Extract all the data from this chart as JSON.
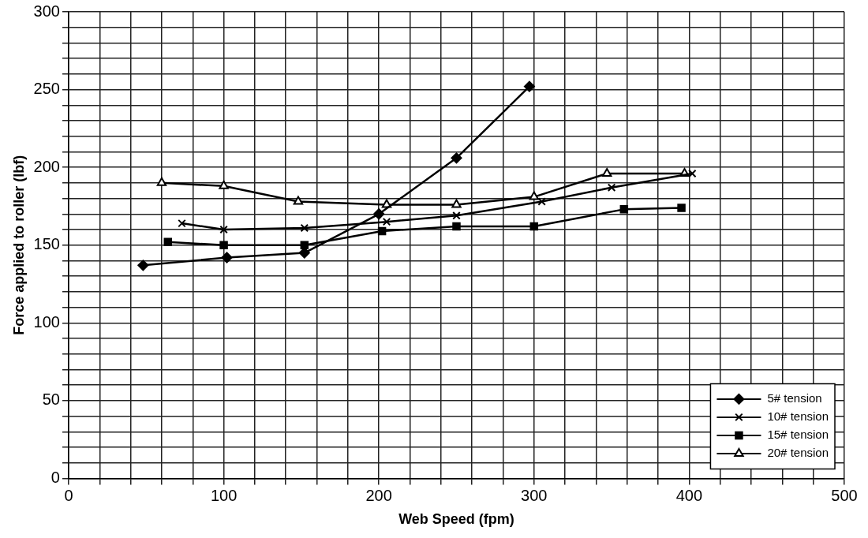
{
  "chart_data": {
    "type": "line",
    "xlabel": "Web Speed (fpm)",
    "ylabel": "Force applied to roller (lbf)",
    "xlim": [
      0,
      500
    ],
    "ylim": [
      0,
      300
    ],
    "xticks": [
      0,
      {
        "value": 20,
        "label": null
      },
      {
        "value": 40,
        "label": null
      },
      {
        "value": 60,
        "label": null
      },
      {
        "value": 80,
        "label": null
      },
      100,
      {
        "value": 120,
        "label": null
      },
      {
        "value": 140,
        "label": null
      },
      {
        "value": 160,
        "label": null
      },
      {
        "value": 180,
        "label": null
      },
      200,
      {
        "value": 220,
        "label": null
      },
      {
        "value": 240,
        "label": null
      },
      {
        "value": 260,
        "label": null
      },
      {
        "value": 280,
        "label": null
      },
      300,
      {
        "value": 320,
        "label": null
      },
      {
        "value": 340,
        "label": null
      },
      {
        "value": 360,
        "label": null
      },
      {
        "value": 380,
        "label": null
      },
      400,
      {
        "value": 420,
        "label": null
      },
      {
        "value": 440,
        "label": null
      },
      {
        "value": 460,
        "label": null
      },
      {
        "value": 480,
        "label": null
      },
      500
    ],
    "yticks": [
      0,
      {
        "value": 10,
        "label": null
      },
      {
        "value": 20,
        "label": null
      },
      {
        "value": 30,
        "label": null
      },
      {
        "value": 40,
        "label": null
      },
      50,
      {
        "value": 60,
        "label": null
      },
      {
        "value": 70,
        "label": null
      },
      {
        "value": 80,
        "label": null
      },
      {
        "value": 90,
        "label": null
      },
      100,
      {
        "value": 110,
        "label": null
      },
      {
        "value": 120,
        "label": null
      },
      {
        "value": 130,
        "label": null
      },
      {
        "value": 140,
        "label": null
      },
      150,
      {
        "value": 160,
        "label": null
      },
      {
        "value": 170,
        "label": null
      },
      {
        "value": 180,
        "label": null
      },
      {
        "value": 190,
        "label": null
      },
      200,
      {
        "value": 210,
        "label": null
      },
      {
        "value": 220,
        "label": null
      },
      {
        "value": 230,
        "label": null
      },
      {
        "value": 240,
        "label": null
      },
      250,
      {
        "value": 260,
        "label": null
      },
      {
        "value": 270,
        "label": null
      },
      {
        "value": 280,
        "label": null
      },
      {
        "value": 290,
        "label": null
      },
      300
    ],
    "grid": true,
    "legend": "bottom right",
    "line_style": "solid",
    "series": [
      {
        "name": "5# tension",
        "color": "#000000",
        "marker": "diamond",
        "x": [
          48,
          102,
          152,
          200,
          250,
          297
        ],
        "values": [
          137,
          142,
          145,
          170,
          206,
          252
        ]
      },
      {
        "name": "10# tension",
        "color": "#000000",
        "marker": "cross",
        "x": [
          73,
          100,
          152,
          205,
          250,
          305,
          350,
          402
        ],
        "values": [
          164,
          160,
          161,
          165,
          169,
          178,
          187,
          196
        ]
      },
      {
        "name": "15# tension",
        "color": "#000000",
        "marker": "square",
        "x": [
          64,
          100,
          152,
          202,
          250,
          300,
          358,
          395
        ],
        "values": [
          152,
          150,
          150,
          159,
          162,
          162,
          173,
          174
        ]
      },
      {
        "name": "20# tension",
        "color": "#000000",
        "marker": "triangle",
        "x": [
          60,
          100,
          148,
          205,
          250,
          300,
          347,
          397
        ],
        "values": [
          190,
          188,
          178,
          176,
          176,
          181,
          196,
          196
        ]
      }
    ]
  }
}
